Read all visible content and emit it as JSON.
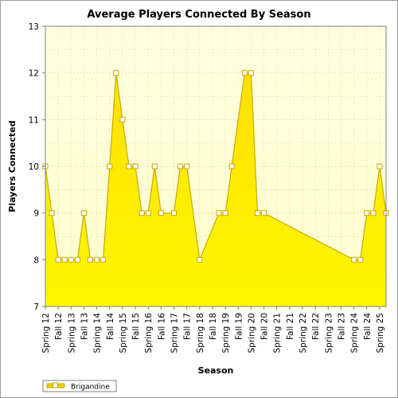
{
  "chart_data": {
    "type": "area",
    "title": "Average Players Connected By Season",
    "xlabel": "Season",
    "ylabel": "Players Connected",
    "ylim": [
      7,
      13
    ],
    "yticks": [
      7,
      8,
      9,
      10,
      11,
      12,
      13
    ],
    "grid": true,
    "legend_position": "bottom-left",
    "tick_labels": [
      "Spring 12",
      "Fall 12",
      "Spring 13",
      "Fall 13",
      "Spring 14",
      "Fall 14",
      "Spring 15",
      "Fall 15",
      "Spring 16",
      "Fall 16",
      "Spring 17",
      "Fall 17",
      "Spring 18",
      "Fall 18",
      "Spring 19",
      "Fall 19",
      "Spring 20",
      "Fall 20",
      "Spring 21",
      "Fall 21",
      "Spring 22",
      "Fall 22",
      "Spring 23",
      "Fall 23",
      "Spring 24",
      "Fall 24",
      "Spring 25"
    ],
    "series": [
      {
        "name": "Brigandine",
        "color": "#f2cc00",
        "points": [
          [
            0,
            10
          ],
          [
            0.5,
            9
          ],
          [
            1,
            8
          ],
          [
            1.5,
            8
          ],
          [
            2,
            8
          ],
          [
            2.5,
            8
          ],
          [
            3,
            9
          ],
          [
            3.5,
            8
          ],
          [
            4,
            8
          ],
          [
            4.5,
            8
          ],
          [
            5,
            10
          ],
          [
            5.5,
            12
          ],
          [
            6,
            11
          ],
          [
            6.5,
            10
          ],
          [
            7,
            10
          ],
          [
            7.5,
            9
          ],
          [
            8,
            9
          ],
          [
            8.5,
            10
          ],
          [
            9,
            9
          ],
          [
            10,
            9
          ],
          [
            10.5,
            10
          ],
          [
            11,
            10
          ],
          [
            12,
            8
          ],
          [
            13.5,
            9
          ],
          [
            14,
            9
          ],
          [
            14.5,
            10
          ],
          [
            15.5,
            12
          ],
          [
            16,
            12
          ],
          [
            16.5,
            9
          ],
          [
            17,
            9
          ],
          [
            24,
            8
          ],
          [
            24.5,
            8
          ],
          [
            25,
            9
          ],
          [
            25.5,
            9
          ],
          [
            26,
            10
          ],
          [
            26.5,
            9
          ]
        ]
      }
    ]
  }
}
